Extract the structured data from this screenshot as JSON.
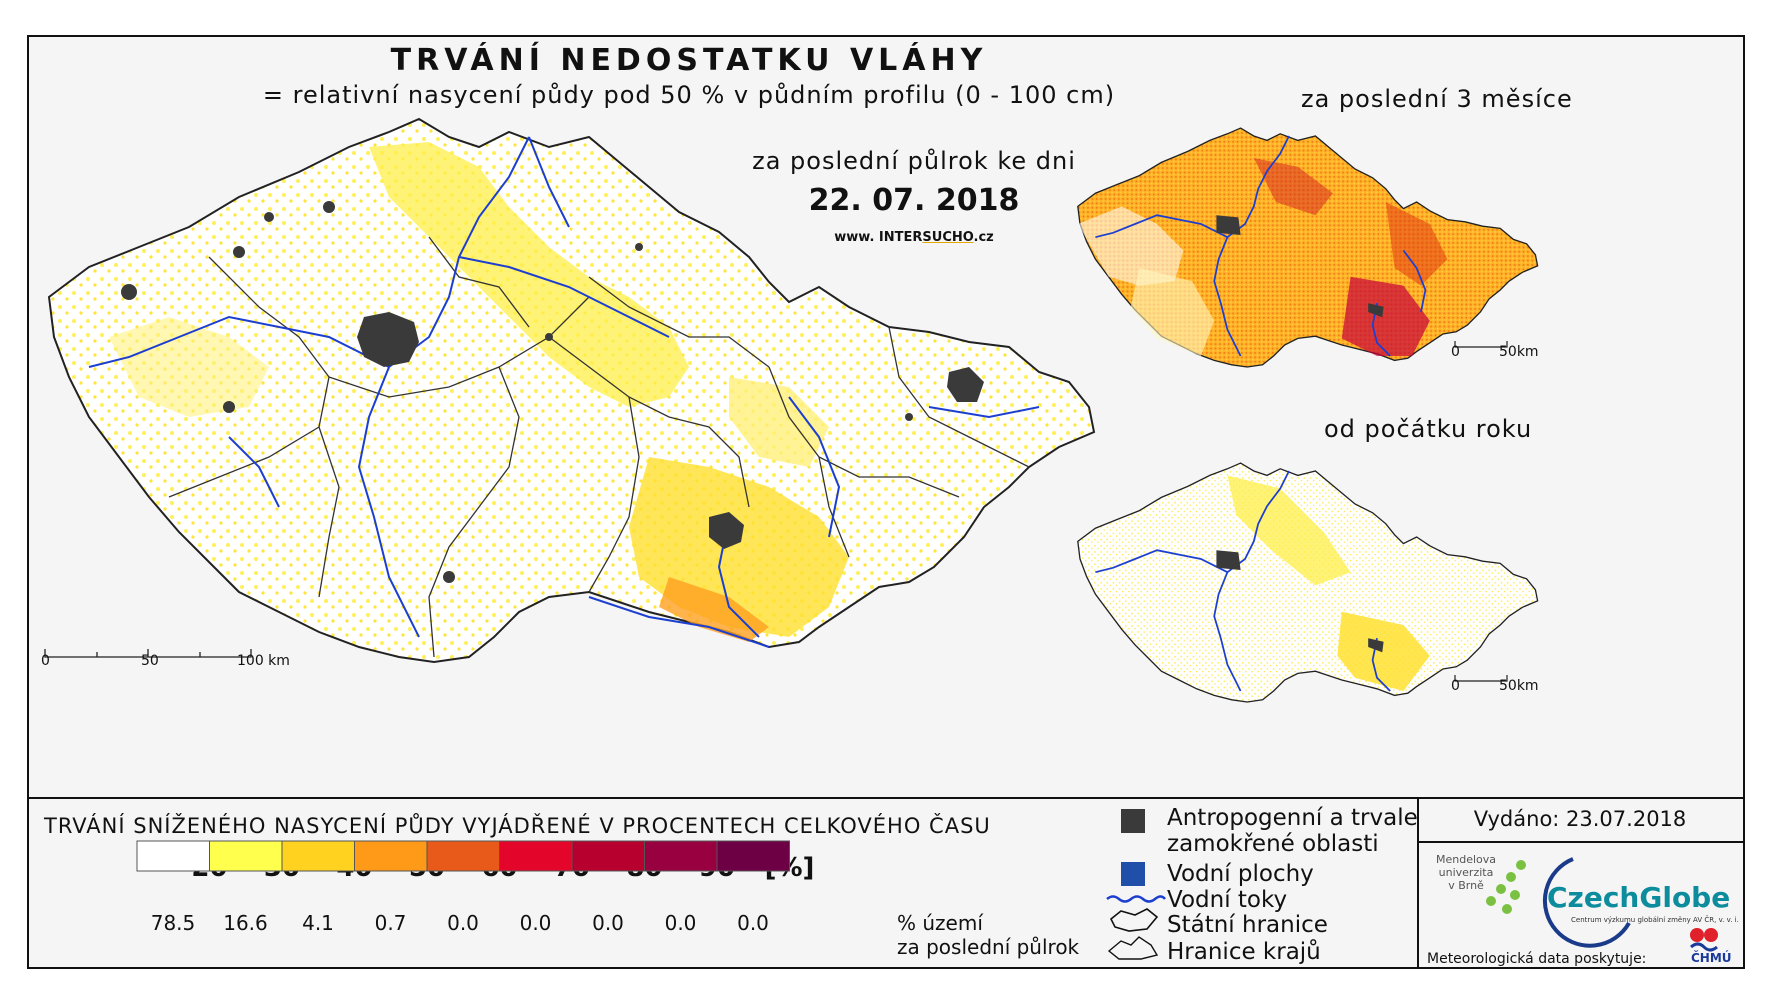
{
  "title": "TRVÁNÍ NEDOSTATKU VLÁHY",
  "subtitle": "= relativní nasycení půdy pod 50 % v půdním profilu (0 - 100 cm)",
  "main_map": {
    "period_label": "za poslední půlrok ke dni",
    "date": "22. 07. 2018",
    "website_prefix": "www. INTER",
    "website_accent": "SUCHO",
    "website_suffix": ".cz",
    "scale": [
      "0",
      "50",
      "100 km"
    ]
  },
  "inset_maps": [
    {
      "title": "za poslední 3 měsíce",
      "scale": [
        "0",
        "50km"
      ]
    },
    {
      "title": "od počátku roku",
      "scale": [
        "0",
        "50km"
      ]
    }
  ],
  "legend": {
    "title": "TRVÁNÍ SNÍŽENÉHO NASYCENÍ PŮDY VYJÁDŘENÉ V PROCENTECH CELKOVÉHO ČASU",
    "class_breaks": [
      "20",
      "30",
      "40",
      "50",
      "60",
      "70",
      "80",
      "90",
      "[%]"
    ],
    "class_colors": [
      "#ffffff",
      "#ffff4d",
      "#ffd21f",
      "#ff9a18",
      "#e85a1a",
      "#e3062a",
      "#b8002e",
      "#990040",
      "#6d0045"
    ],
    "area_percent": [
      "78.5",
      "16.6",
      "4.1",
      "0.7",
      "0.0",
      "0.0",
      "0.0",
      "0.0",
      "0.0"
    ],
    "area_unit_line1": "% území",
    "area_unit_line2": "za poslední půlrok"
  },
  "symbols": [
    {
      "label_line1": "Antropogenní a trvale",
      "label_line2": "zamokřené oblasti",
      "icon": "dark-gray-square-icon",
      "color": "#3a3a3a"
    },
    {
      "label_line1": "Vodní plochy",
      "icon": "blue-square-icon",
      "color": "#1f4fa8"
    },
    {
      "label_line1": "Vodní toky",
      "icon": "blue-wavy-line-icon",
      "color": "#1d3fd0"
    },
    {
      "label_line1": "Státní hranice",
      "icon": "country-outline-icon"
    },
    {
      "label_line1": "Hranice krajů",
      "icon": "region-outline-icon"
    }
  ],
  "credits": {
    "issued": "Vydáno: 23.07.2018",
    "mendel_line1": "Mendelova",
    "mendel_line2": "univerzita",
    "mendel_line3": "v Brně",
    "czechglobe": "CzechGlobe",
    "czechglobe_sub": "Centrum výzkumu globální změny AV ČR, v. v. i.",
    "meteo_label": "Meteorologická data poskytuje:",
    "chmu": "ČHMÚ"
  }
}
